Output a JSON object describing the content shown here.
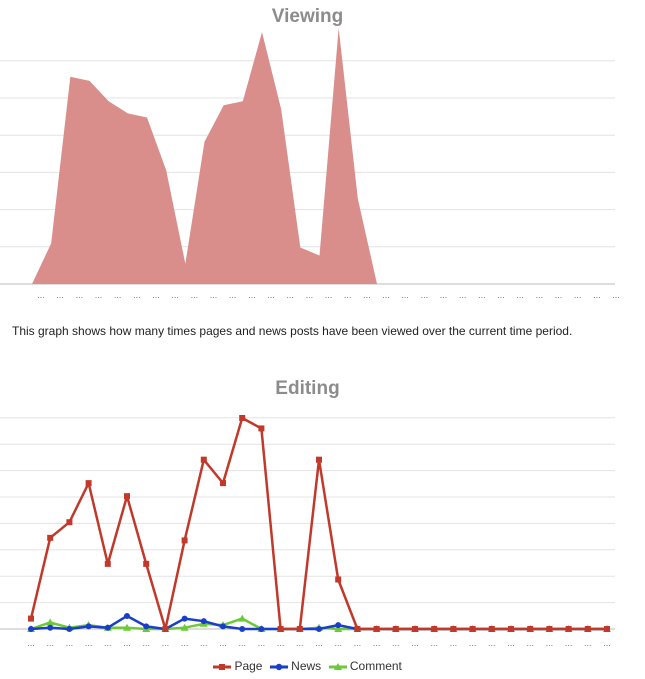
{
  "colors": {
    "viewing_fill": "#d98e8c",
    "page": "#c0392b",
    "news": "#1a3ec9",
    "comment": "#6cc93a",
    "grid": "#e3e3e3",
    "axis": "#bbbbbb",
    "title": "#8c8c8c"
  },
  "description": "This graph shows how many times pages and news posts have been viewed over the current time period.",
  "chart_data": [
    {
      "type": "area",
      "title": "Viewing",
      "tick_label": "...",
      "ylim": [
        0,
        6.4
      ],
      "grid": true,
      "series": [
        {
          "values": [
            0,
            1,
            5.1,
            5.0,
            4.5,
            4.2,
            4.1,
            2.8,
            0.5,
            3.5,
            4.4,
            4.5,
            6.2,
            4.3,
            0.9,
            0.7,
            6.3,
            2.1,
            0
          ]
        }
      ]
    },
    {
      "type": "line",
      "title": "Editing",
      "tick_label": "...",
      "ylim": [
        0,
        8.1
      ],
      "grid": true,
      "legend": "bottom",
      "points": 31,
      "series": [
        {
          "name": "Page",
          "values": [
            0.4,
            3.5,
            4.1,
            5.6,
            2.5,
            5.1,
            2.5,
            0,
            3.4,
            6.5,
            5.6,
            8.1,
            7.7,
            0,
            0,
            6.5,
            1.9,
            0,
            0,
            0,
            0,
            0,
            0,
            0,
            0,
            0,
            0,
            0,
            0,
            0,
            0
          ]
        },
        {
          "name": "News",
          "values": [
            0,
            0.05,
            0,
            0.1,
            0.05,
            0.5,
            0.1,
            0,
            0.4,
            0.3,
            0.1,
            0,
            0,
            0,
            0,
            0,
            0.15,
            0,
            0,
            0,
            0,
            0,
            0,
            0,
            0,
            0,
            0,
            0,
            0,
            0,
            0
          ]
        },
        {
          "name": "Comment",
          "values": [
            0,
            0.25,
            0.05,
            0.15,
            0.05,
            0.05,
            0,
            0,
            0.05,
            0.2,
            0.15,
            0.4,
            0,
            0,
            0,
            0.05,
            0,
            0,
            0,
            0,
            0,
            0,
            0,
            0,
            0,
            0,
            0,
            0,
            0,
            0,
            0
          ]
        }
      ]
    }
  ]
}
